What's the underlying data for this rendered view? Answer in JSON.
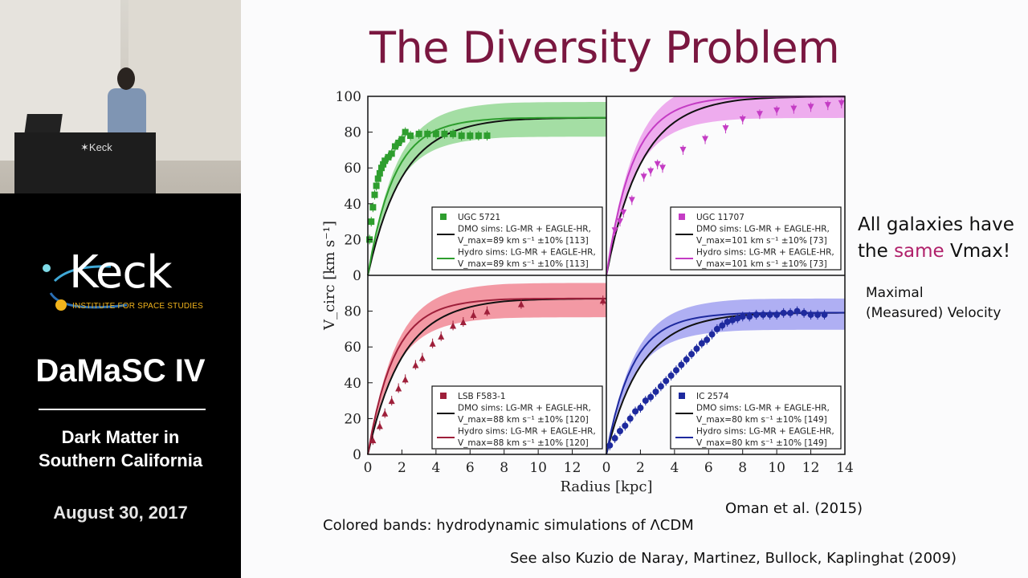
{
  "sidebar": {
    "podium_logo": "✶Keck",
    "logo_word": "Keck",
    "logo_tagline": "INSTITUTE FOR SPACE STUDIES",
    "event_title": "DaMaSC IV",
    "event_subtitle_line1": "Dark Matter in",
    "event_subtitle_line2": "Southern California",
    "event_date": "August 30, 2017"
  },
  "slide": {
    "title": "The Diversity Problem",
    "note_line1": "All galaxies have",
    "note_line2_pre": "the ",
    "note_line2_highlight": "same",
    "note_line2_post": " Vmax!",
    "note_sub_line1": "Maximal",
    "note_sub_line2": "(Measured) Velocity",
    "citation": "Oman et al. (2015)",
    "bands_caption": "Colored bands: hydrodynamic simulations of ΛCDM",
    "see_also": "See also Kuzio de Naray, Martinez, Bullock, Kaplinghat (2009)"
  },
  "colors": {
    "title": "#7a1740",
    "highlight": "#b0206a",
    "logo_accent": "#f2b41c"
  },
  "chart_data": {
    "type": "scatter",
    "xlabel": "Radius [kpc]",
    "ylabel": "V_circ [km s⁻¹]",
    "xlim": [
      0,
      14
    ],
    "ylim": [
      0,
      100
    ],
    "x_ticks": [
      "0",
      "2",
      "4",
      "6",
      "8",
      "10",
      "12",
      "14"
    ],
    "y_ticks": [
      "0",
      "20",
      "40",
      "60",
      "80",
      "100"
    ],
    "panels": [
      {
        "galaxy": "UGC 5721",
        "color": "#2e9e2e",
        "band_color": "#7fd17f",
        "marker": "square",
        "legend": [
          "UGC 5721",
          "DMO sims: LG-MR + EAGLE-HR,",
          "V_max=89 km s⁻¹ ±10% [113]",
          "Hydro sims: LG-MR + EAGLE-HR,",
          "V_max=89 km s⁻¹ ±10% [113]"
        ],
        "vmax": 89,
        "data": [
          [
            0.1,
            20
          ],
          [
            0.2,
            30
          ],
          [
            0.3,
            38
          ],
          [
            0.4,
            45
          ],
          [
            0.5,
            50
          ],
          [
            0.6,
            54
          ],
          [
            0.7,
            57
          ],
          [
            0.8,
            60
          ],
          [
            0.9,
            62
          ],
          [
            1.0,
            64
          ],
          [
            1.2,
            66
          ],
          [
            1.4,
            68
          ],
          [
            1.6,
            72
          ],
          [
            1.8,
            74
          ],
          [
            2.0,
            76
          ],
          [
            2.2,
            80
          ],
          [
            2.5,
            78
          ],
          [
            3.0,
            79
          ],
          [
            3.5,
            79
          ],
          [
            4.0,
            79
          ],
          [
            4.5,
            79
          ],
          [
            5.0,
            79
          ],
          [
            5.5,
            78
          ],
          [
            6.0,
            78
          ],
          [
            6.5,
            78
          ],
          [
            7.0,
            78
          ]
        ]
      },
      {
        "galaxy": "UGC 11707",
        "color": "#c43cc4",
        "band_color": "#e88ae8",
        "marker": "triangle-down",
        "legend": [
          "UGC 11707",
          "DMO sims: LG-MR + EAGLE-HR,",
          "V_max=101 km s⁻¹ ±10% [73]",
          "Hydro sims: LG-MR + EAGLE-HR,",
          "V_max=101 km s⁻¹ ±10% [73]"
        ],
        "vmax": 101,
        "data": [
          [
            0.5,
            25
          ],
          [
            0.8,
            30
          ],
          [
            1.0,
            35
          ],
          [
            1.5,
            42
          ],
          [
            2.2,
            55
          ],
          [
            2.6,
            58
          ],
          [
            3.0,
            62
          ],
          [
            3.3,
            60
          ],
          [
            4.5,
            70
          ],
          [
            5.8,
            76
          ],
          [
            7.0,
            82
          ],
          [
            8.0,
            87
          ],
          [
            9.0,
            90
          ],
          [
            10.0,
            92
          ],
          [
            11.0,
            93
          ],
          [
            12.0,
            94
          ],
          [
            13.0,
            95
          ],
          [
            13.8,
            96
          ]
        ]
      },
      {
        "galaxy": "LSB F583-1",
        "color": "#9e1f3a",
        "band_color": "#ef6f7f",
        "marker": "triangle-up",
        "legend": [
          "LSB F583-1",
          "DMO sims: LG-MR + EAGLE-HR,",
          "V_max=88 km s⁻¹ ±10% [120]",
          "Hydro sims: LG-MR + EAGLE-HR,",
          "V_max=88 km s⁻¹ ±10% [120]"
        ],
        "vmax": 88,
        "data": [
          [
            0.3,
            8
          ],
          [
            0.7,
            16
          ],
          [
            1.0,
            23
          ],
          [
            1.4,
            30
          ],
          [
            1.8,
            37
          ],
          [
            2.2,
            42
          ],
          [
            2.8,
            50
          ],
          [
            3.2,
            54
          ],
          [
            3.8,
            62
          ],
          [
            4.3,
            66
          ],
          [
            5.0,
            72
          ],
          [
            5.6,
            74
          ],
          [
            6.2,
            78
          ],
          [
            7.0,
            80
          ],
          [
            9.0,
            84
          ],
          [
            13.8,
            86
          ]
        ]
      },
      {
        "galaxy": "IC 2574",
        "color": "#1e2a9e",
        "band_color": "#8f8fef",
        "marker": "circle",
        "legend": [
          "IC 2574",
          "DMO sims: LG-MR + EAGLE-HR,",
          "V_max=80 km s⁻¹ ±10% [149]",
          "Hydro sims: LG-MR + EAGLE-HR,",
          "V_max=80 km s⁻¹ ±10% [149]"
        ],
        "vmax": 80,
        "data": [
          [
            0.2,
            5
          ],
          [
            0.5,
            9
          ],
          [
            0.8,
            13
          ],
          [
            1.1,
            16
          ],
          [
            1.4,
            20
          ],
          [
            1.7,
            24
          ],
          [
            2.0,
            26
          ],
          [
            2.3,
            30
          ],
          [
            2.6,
            32
          ],
          [
            2.9,
            35
          ],
          [
            3.2,
            38
          ],
          [
            3.5,
            41
          ],
          [
            3.8,
            44
          ],
          [
            4.1,
            47
          ],
          [
            4.4,
            50
          ],
          [
            4.7,
            53
          ],
          [
            5.0,
            56
          ],
          [
            5.3,
            59
          ],
          [
            5.6,
            62
          ],
          [
            5.9,
            64
          ],
          [
            6.2,
            67
          ],
          [
            6.5,
            70
          ],
          [
            6.8,
            72
          ],
          [
            7.1,
            74
          ],
          [
            7.4,
            75
          ],
          [
            7.7,
            76
          ],
          [
            8.0,
            77
          ],
          [
            8.4,
            77
          ],
          [
            8.8,
            78
          ],
          [
            9.2,
            78
          ],
          [
            9.6,
            78
          ],
          [
            10.0,
            78
          ],
          [
            10.4,
            79
          ],
          [
            10.8,
            79
          ],
          [
            11.2,
            80
          ],
          [
            11.6,
            79
          ],
          [
            12.0,
            78
          ],
          [
            12.4,
            78
          ],
          [
            12.8,
            78
          ]
        ]
      }
    ]
  }
}
